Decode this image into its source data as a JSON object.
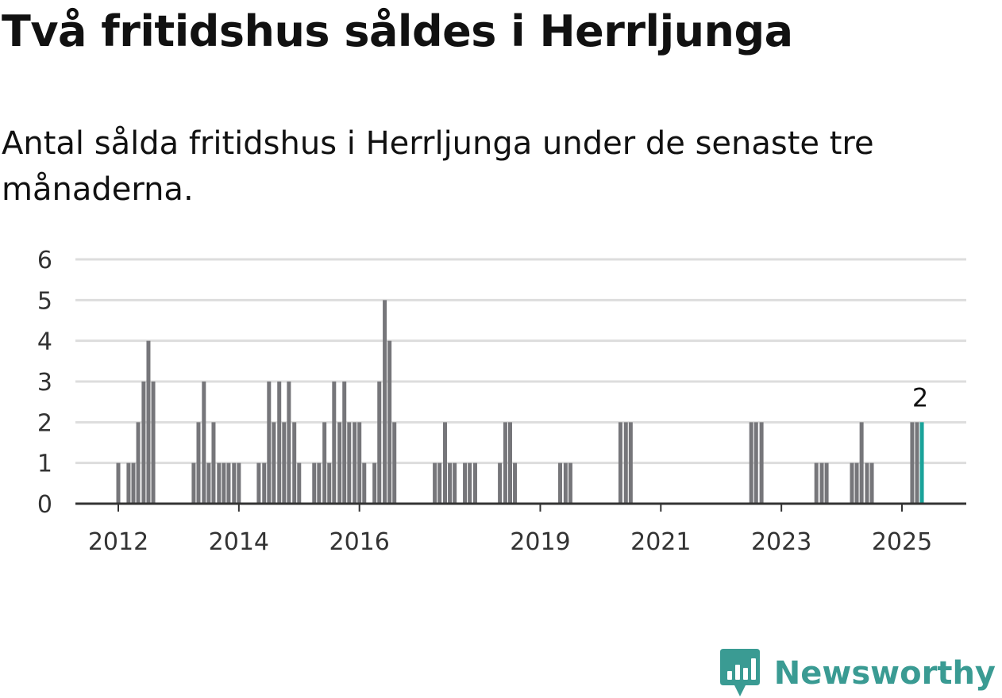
{
  "title": "Två fritidshus såldes i Herrljunga",
  "subtitle": "Antal sålda fritidshus i Herrljunga under de senaste tre månaderna.",
  "brand": {
    "name": "Newsworthy",
    "icon": "newsworthy-logo-icon",
    "color": "#3a9b93"
  },
  "colors": {
    "bar": "#76767a",
    "highlight": "#1aa39a",
    "grid": "#dddddd",
    "axis": "#333333"
  },
  "chart_data": {
    "type": "bar",
    "ylim": [
      0,
      6
    ],
    "y_ticks": [
      "0",
      "1",
      "2",
      "3",
      "4",
      "5",
      "6"
    ],
    "x_ticks": [
      {
        "label": "2012",
        "x": 2012.0
      },
      {
        "label": "2014",
        "x": 2014.0
      },
      {
        "label": "2016",
        "x": 2016.0
      },
      {
        "label": "2019",
        "x": 2019.0
      },
      {
        "label": "2021",
        "x": 2021.0
      },
      {
        "label": "2023",
        "x": 2023.0
      },
      {
        "label": "2025",
        "x": 2025.0
      }
    ],
    "grid": true,
    "bars": [
      {
        "x": 2012.0,
        "value": 1
      },
      {
        "x": 2012.17,
        "value": 1
      },
      {
        "x": 2012.25,
        "value": 1
      },
      {
        "x": 2012.33,
        "value": 2
      },
      {
        "x": 2012.42,
        "value": 3
      },
      {
        "x": 2012.5,
        "value": 4
      },
      {
        "x": 2012.58,
        "value": 3
      },
      {
        "x": 2013.25,
        "value": 1
      },
      {
        "x": 2013.33,
        "value": 2
      },
      {
        "x": 2013.42,
        "value": 3
      },
      {
        "x": 2013.5,
        "value": 1
      },
      {
        "x": 2013.58,
        "value": 2
      },
      {
        "x": 2013.67,
        "value": 1
      },
      {
        "x": 2013.75,
        "value": 1
      },
      {
        "x": 2013.83,
        "value": 1
      },
      {
        "x": 2013.92,
        "value": 1
      },
      {
        "x": 2014.0,
        "value": 1
      },
      {
        "x": 2014.33,
        "value": 1
      },
      {
        "x": 2014.42,
        "value": 1
      },
      {
        "x": 2014.5,
        "value": 3
      },
      {
        "x": 2014.58,
        "value": 2
      },
      {
        "x": 2014.67,
        "value": 3
      },
      {
        "x": 2014.75,
        "value": 2
      },
      {
        "x": 2014.83,
        "value": 3
      },
      {
        "x": 2014.92,
        "value": 2
      },
      {
        "x": 2015.0,
        "value": 1
      },
      {
        "x": 2015.25,
        "value": 1
      },
      {
        "x": 2015.33,
        "value": 1
      },
      {
        "x": 2015.42,
        "value": 2
      },
      {
        "x": 2015.5,
        "value": 1
      },
      {
        "x": 2015.58,
        "value": 3
      },
      {
        "x": 2015.67,
        "value": 2
      },
      {
        "x": 2015.75,
        "value": 3
      },
      {
        "x": 2015.83,
        "value": 2
      },
      {
        "x": 2015.92,
        "value": 2
      },
      {
        "x": 2016.0,
        "value": 2
      },
      {
        "x": 2016.08,
        "value": 1
      },
      {
        "x": 2016.25,
        "value": 1
      },
      {
        "x": 2016.33,
        "value": 3
      },
      {
        "x": 2016.42,
        "value": 5
      },
      {
        "x": 2016.5,
        "value": 4
      },
      {
        "x": 2016.58,
        "value": 2
      },
      {
        "x": 2017.25,
        "value": 1
      },
      {
        "x": 2017.33,
        "value": 1
      },
      {
        "x": 2017.42,
        "value": 2
      },
      {
        "x": 2017.5,
        "value": 1
      },
      {
        "x": 2017.58,
        "value": 1
      },
      {
        "x": 2017.75,
        "value": 1
      },
      {
        "x": 2017.83,
        "value": 1
      },
      {
        "x": 2017.92,
        "value": 1
      },
      {
        "x": 2018.33,
        "value": 1
      },
      {
        "x": 2018.42,
        "value": 2
      },
      {
        "x": 2018.5,
        "value": 2
      },
      {
        "x": 2018.58,
        "value": 1
      },
      {
        "x": 2019.33,
        "value": 1
      },
      {
        "x": 2019.42,
        "value": 1
      },
      {
        "x": 2019.5,
        "value": 1
      },
      {
        "x": 2020.33,
        "value": 2
      },
      {
        "x": 2020.42,
        "value": 2
      },
      {
        "x": 2020.5,
        "value": 2
      },
      {
        "x": 2022.5,
        "value": 2
      },
      {
        "x": 2022.58,
        "value": 2
      },
      {
        "x": 2022.67,
        "value": 2
      },
      {
        "x": 2023.58,
        "value": 1
      },
      {
        "x": 2023.67,
        "value": 1
      },
      {
        "x": 2023.75,
        "value": 1
      },
      {
        "x": 2024.17,
        "value": 1
      },
      {
        "x": 2024.25,
        "value": 1
      },
      {
        "x": 2024.33,
        "value": 2
      },
      {
        "x": 2024.42,
        "value": 1
      },
      {
        "x": 2024.5,
        "value": 1
      },
      {
        "x": 2025.17,
        "value": 2
      },
      {
        "x": 2025.25,
        "value": 2
      },
      {
        "x": 2025.33,
        "value": 2,
        "highlight": true,
        "label": "2"
      }
    ]
  }
}
